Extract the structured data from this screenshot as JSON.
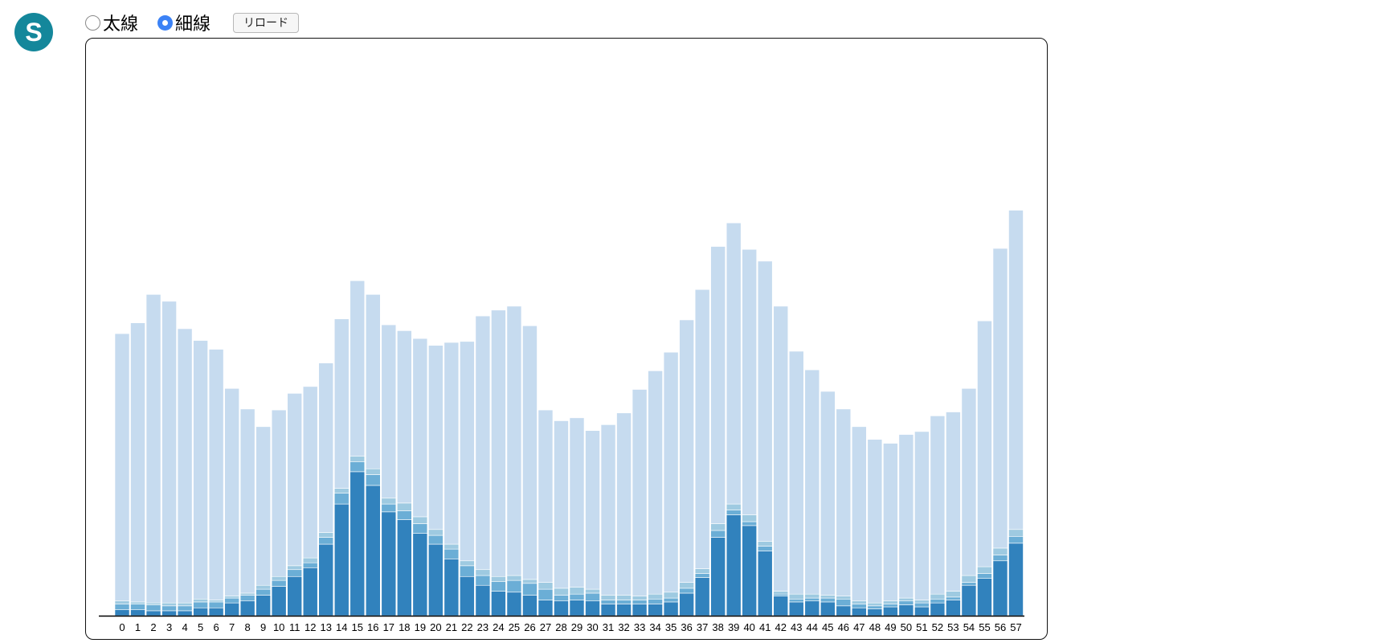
{
  "logo": {
    "letter": "S",
    "color": "#14879b"
  },
  "controls": {
    "options": [
      {
        "label": "太線",
        "checked": false
      },
      {
        "label": "細線",
        "checked": true
      }
    ],
    "reload_label": "リロード"
  },
  "chart_data": {
    "type": "bar",
    "stacked": true,
    "title": "",
    "xlabel": "",
    "ylabel": "",
    "y_axis_shown": false,
    "grid": false,
    "legend": "none",
    "categories": [
      "0",
      "1",
      "2",
      "3",
      "4",
      "5",
      "6",
      "7",
      "8",
      "9",
      "10",
      "11",
      "12",
      "13",
      "14",
      "15",
      "16",
      "17",
      "18",
      "19",
      "20",
      "21",
      "22",
      "23",
      "24",
      "25",
      "26",
      "27",
      "28",
      "29",
      "30",
      "31",
      "32",
      "33",
      "34",
      "35",
      "36",
      "37",
      "38",
      "39",
      "40",
      "41",
      "42",
      "43",
      "44",
      "45",
      "46",
      "47",
      "48",
      "49",
      "50",
      "51",
      "52",
      "53",
      "54",
      "55",
      "56",
      "57"
    ],
    "colors": [
      "#3182bd",
      "#6baed6",
      "#9ecae1",
      "#c6dbef"
    ],
    "ylim": [
      0,
      540
    ],
    "series": [
      {
        "values": [
          6,
          6,
          5,
          5,
          5,
          8,
          8,
          13,
          15,
          21,
          30,
          40,
          49,
          73,
          114,
          147,
          133,
          106,
          98,
          84,
          73,
          58,
          40,
          31,
          25,
          24,
          21,
          16,
          15,
          16,
          15,
          12,
          12,
          12,
          12,
          14,
          23,
          39,
          80,
          103,
          92,
          66,
          20,
          14,
          15,
          14,
          10,
          8,
          7,
          9,
          11,
          9,
          13,
          16,
          31,
          38,
          56,
          74
        ]
      },
      {
        "values": [
          6,
          6,
          6,
          5,
          5,
          6,
          6,
          5,
          6,
          6,
          6,
          7,
          5,
          7,
          11,
          10,
          11,
          8,
          9,
          10,
          9,
          10,
          11,
          10,
          10,
          12,
          12,
          11,
          6,
          6,
          8,
          4,
          4,
          4,
          5,
          4,
          5,
          4,
          7,
          5,
          4,
          5,
          2,
          3,
          3,
          4,
          7,
          4,
          3,
          3,
          4,
          4,
          4,
          3,
          3,
          5,
          6,
          7
        ]
      },
      {
        "values": [
          3,
          2,
          2,
          3,
          3,
          3,
          2,
          2,
          2,
          4,
          4,
          4,
          5,
          5,
          5,
          6,
          6,
          6,
          8,
          7,
          6,
          5,
          5,
          6,
          5,
          5,
          4,
          7,
          7,
          7,
          4,
          5,
          5,
          4,
          5,
          6,
          6,
          5,
          7,
          6,
          7,
          5,
          3,
          5,
          4,
          3,
          3,
          3,
          3,
          3,
          3,
          3,
          5,
          6,
          7,
          7,
          7,
          7
        ]
      },
      {
        "values": [
          273,
          285,
          315,
          308,
          280,
          264,
          256,
          212,
          188,
          162,
          170,
          176,
          175,
          173,
          173,
          179,
          178,
          177,
          176,
          182,
          188,
          206,
          224,
          259,
          272,
          275,
          259,
          176,
          171,
          173,
          162,
          174,
          186,
          211,
          228,
          245,
          268,
          285,
          283,
          287,
          271,
          286,
          291,
          248,
          229,
          208,
          191,
          178,
          167,
          161,
          167,
          172,
          182,
          183,
          191,
          251,
          306,
          326
        ]
      }
    ]
  }
}
